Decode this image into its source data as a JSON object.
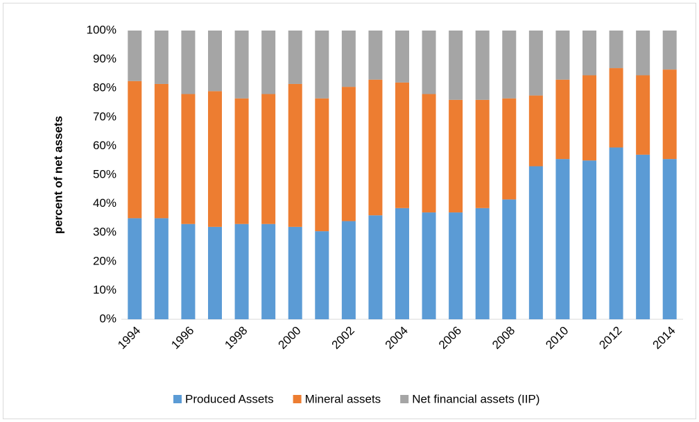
{
  "chart_data": {
    "type": "stacked_bar",
    "y_label": "percent of net assets",
    "categories": [
      "1994",
      null,
      "1996",
      null,
      "1998",
      null,
      "2000",
      null,
      "2002",
      null,
      "2004",
      null,
      "2006",
      null,
      "2008",
      null,
      "2010",
      null,
      "2012",
      null,
      "2014"
    ],
    "series": [
      {
        "name": "Produced Assets",
        "color": "#5b9bd5",
        "values": [
          35,
          35,
          33,
          32,
          33,
          33,
          32,
          30.5,
          34,
          36,
          38.5,
          37,
          37,
          38.5,
          41.5,
          53,
          55.5,
          55,
          59.5,
          57,
          55.5
        ]
      },
      {
        "name": "Mineral assets",
        "color": "#ed7d31",
        "values": [
          47.5,
          46.5,
          45,
          47,
          43.5,
          45,
          49.5,
          46,
          46.5,
          47,
          43.5,
          41,
          39,
          37.5,
          35,
          24.5,
          27.5,
          29.5,
          27.5,
          27.5,
          31
        ]
      },
      {
        "name": "Net financial assets (IIP)",
        "color": "#a5a5a5",
        "values": [
          17.5,
          18.5,
          22,
          21,
          23.5,
          22,
          18.5,
          23.5,
          19.5,
          17,
          18,
          22,
          24,
          24,
          23.5,
          22.5,
          17,
          15.5,
          13,
          15.5,
          13.5
        ]
      }
    ],
    "ylim": [
      0,
      100
    ],
    "yticks": [
      {
        "value": 0,
        "label": "0%"
      },
      {
        "value": 10,
        "label": "10%"
      },
      {
        "value": 20,
        "label": "20%"
      },
      {
        "value": 30,
        "label": "30%"
      },
      {
        "value": 40,
        "label": "40%"
      },
      {
        "value": 50,
        "label": "50%"
      },
      {
        "value": 60,
        "label": "60%"
      },
      {
        "value": 70,
        "label": "70%"
      },
      {
        "value": 80,
        "label": "80%"
      },
      {
        "value": 90,
        "label": "90%"
      },
      {
        "value": 100,
        "label": "100%"
      }
    ],
    "legend": "bottom"
  }
}
